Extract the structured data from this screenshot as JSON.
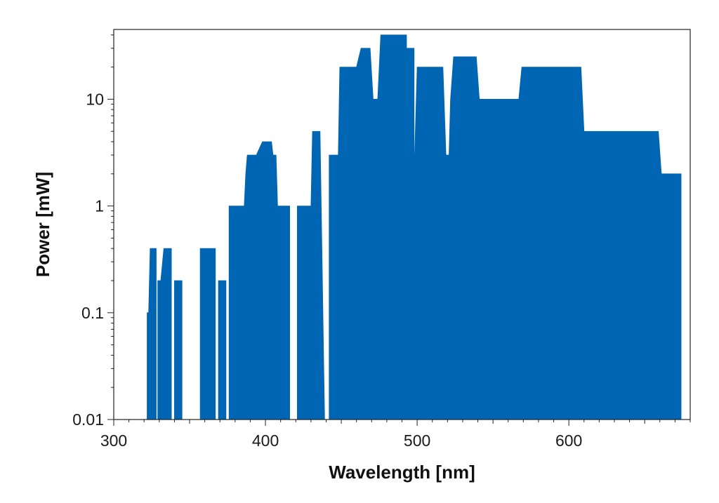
{
  "chart_data": {
    "type": "area",
    "title": "",
    "xlabel": "Wavelength [nm]",
    "ylabel": "Power [mW]",
    "xlim": [
      300,
      680
    ],
    "ylim": [
      0.01,
      45
    ],
    "yscale": "log",
    "grid": false,
    "legend": "none",
    "fill_color": "#0066b3",
    "x_ticks": [
      {
        "value": 300,
        "label": "300"
      },
      {
        "value": 400,
        "label": "400"
      },
      {
        "value": 500,
        "label": "500"
      },
      {
        "value": 600,
        "label": "600"
      }
    ],
    "y_ticks": [
      {
        "value": 0.01,
        "label": "0.01"
      },
      {
        "value": 0.1,
        "label": "0.1"
      },
      {
        "value": 1,
        "label": "1"
      },
      {
        "value": 10,
        "label": "10"
      }
    ],
    "series": [
      {
        "segments": [
          [
            [
              322,
              0.01
            ],
            [
              322,
              0.1
            ],
            [
              323,
              0.1
            ],
            [
              324,
              0.4
            ],
            [
              328,
              0.4
            ],
            [
              328,
              0.01
            ]
          ],
          [
            [
              329,
              0.01
            ],
            [
              329,
              0.2
            ],
            [
              331,
              0.2
            ],
            [
              333,
              0.4
            ],
            [
              338,
              0.4
            ],
            [
              338,
              0.01
            ]
          ],
          [
            [
              340,
              0.01
            ],
            [
              340,
              0.2
            ],
            [
              345,
              0.2
            ],
            [
              345,
              0.01
            ]
          ],
          [
            [
              357,
              0.01
            ],
            [
              357,
              0.4
            ],
            [
              367,
              0.4
            ],
            [
              367,
              0.01
            ]
          ],
          [
            [
              369,
              0.01
            ],
            [
              369,
              0.2
            ],
            [
              374,
              0.2
            ],
            [
              374,
              0.01
            ]
          ],
          [
            [
              376,
              0.01
            ],
            [
              376,
              1
            ],
            [
              386,
              1
            ],
            [
              387,
              2
            ],
            [
              388,
              3
            ],
            [
              394,
              3
            ],
            [
              398,
              4
            ],
            [
              404,
              4
            ],
            [
              405,
              3
            ],
            [
              407,
              3
            ],
            [
              408,
              1
            ],
            [
              416,
              1
            ],
            [
              416,
              0.01
            ]
          ],
          [
            [
              421,
              0.01
            ],
            [
              421,
              1
            ],
            [
              430,
              1
            ],
            [
              431,
              5
            ],
            [
              436,
              5
            ],
            [
              439,
              0.01
            ]
          ],
          [
            [
              442,
              0.01
            ],
            [
              442,
              3
            ],
            [
              448,
              3
            ],
            [
              449,
              20
            ],
            [
              460,
              20
            ],
            [
              463,
              30
            ],
            [
              469,
              30
            ],
            [
              471,
              10
            ],
            [
              474,
              10
            ],
            [
              476,
              40
            ],
            [
              493,
              40
            ],
            [
              493,
              30
            ],
            [
              498,
              30
            ],
            [
              498,
              2
            ],
            [
              500,
              20
            ],
            [
              517,
              20
            ],
            [
              519,
              3
            ],
            [
              521,
              3
            ],
            [
              522,
              10
            ],
            [
              524,
              25
            ],
            [
              539,
              25
            ],
            [
              541,
              10
            ],
            [
              567,
              10
            ],
            [
              569,
              20
            ],
            [
              608,
              20
            ],
            [
              610,
              5
            ],
            [
              659,
              5
            ],
            [
              661,
              2
            ],
            [
              674,
              2
            ],
            [
              674,
              0.01
            ]
          ]
        ]
      }
    ]
  }
}
